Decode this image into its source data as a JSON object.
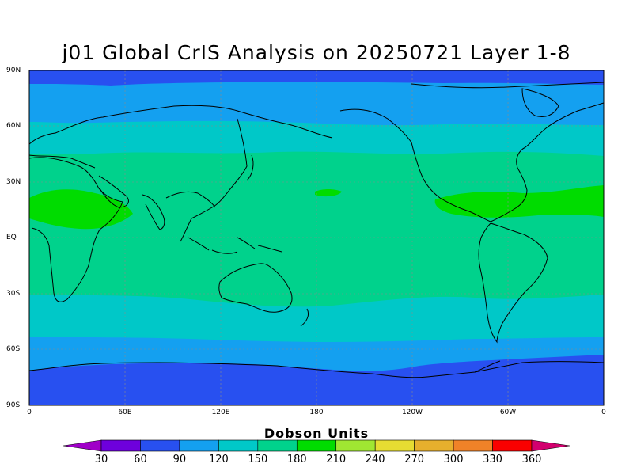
{
  "title": "j01 Global CrIS Analysis on 20250721 Layer 1-8",
  "lat_labels": [
    "90N",
    "60N",
    "30N",
    "EQ",
    "30S",
    "60S",
    "90S"
  ],
  "lon_labels": [
    "0",
    "60E",
    "120E",
    "180",
    "120W",
    "60W",
    "0"
  ],
  "colorbar": {
    "title": "Dobson Units",
    "levels": [
      30,
      60,
      90,
      120,
      150,
      180,
      210,
      240,
      270,
      300,
      330,
      360
    ],
    "colors": [
      "#a000c8",
      "#6e00dc",
      "#2850f0",
      "#14a0f0",
      "#00c8c8",
      "#00d28c",
      "#00dc00",
      "#a0e632",
      "#e6dc32",
      "#e6af2d",
      "#f08228",
      "#fa0000",
      "#d2006e"
    ]
  },
  "map": {
    "zone_colors": {
      "60_90": "#2850f0",
      "90_120": "#14a0f0",
      "120_150": "#00c8c8",
      "150_180": "#00d28c",
      "180_210": "#00dc00"
    }
  }
}
